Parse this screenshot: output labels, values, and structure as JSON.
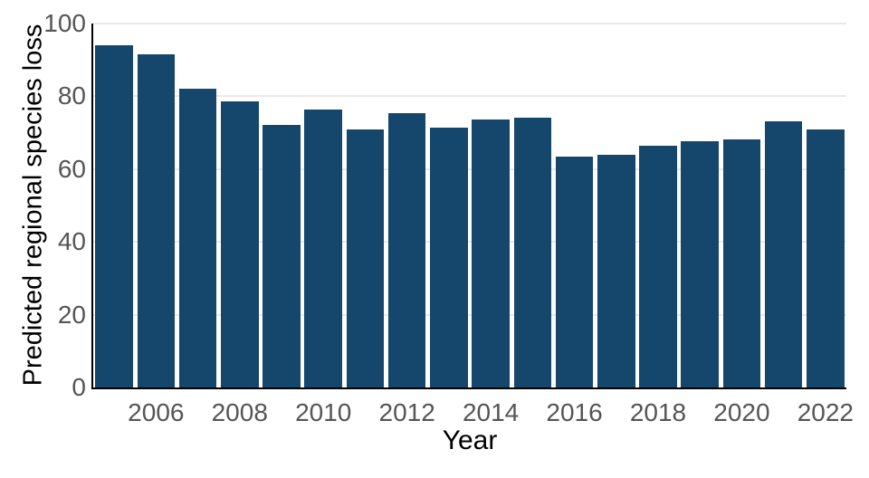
{
  "chart_data": {
    "type": "bar",
    "title": "",
    "xlabel": "Year",
    "ylabel": "Predicted regional species loss",
    "categories": [
      2005,
      2006,
      2007,
      2008,
      2009,
      2010,
      2011,
      2012,
      2013,
      2014,
      2015,
      2016,
      2017,
      2018,
      2019,
      2020,
      2021,
      2022
    ],
    "values": [
      94.0,
      91.5,
      82.0,
      78.7,
      72.1,
      76.3,
      70.8,
      75.3,
      71.3,
      73.7,
      74.1,
      63.5,
      64.0,
      66.3,
      67.7,
      68.2,
      73.1,
      70.8
    ],
    "ylim": [
      0,
      100
    ],
    "yticks": [
      0,
      20,
      40,
      60,
      80,
      100
    ],
    "xticks": [
      2006,
      2008,
      2010,
      2012,
      2014,
      2016,
      2018,
      2020,
      2022
    ],
    "grid": "horizontal",
    "legend_position": "none",
    "colors": {
      "bar": "#14476b",
      "grid": "#e9e9e9",
      "tick_label": "#555555",
      "axis_label": "#000000",
      "spine": "#000000",
      "background": "#ffffff"
    }
  }
}
